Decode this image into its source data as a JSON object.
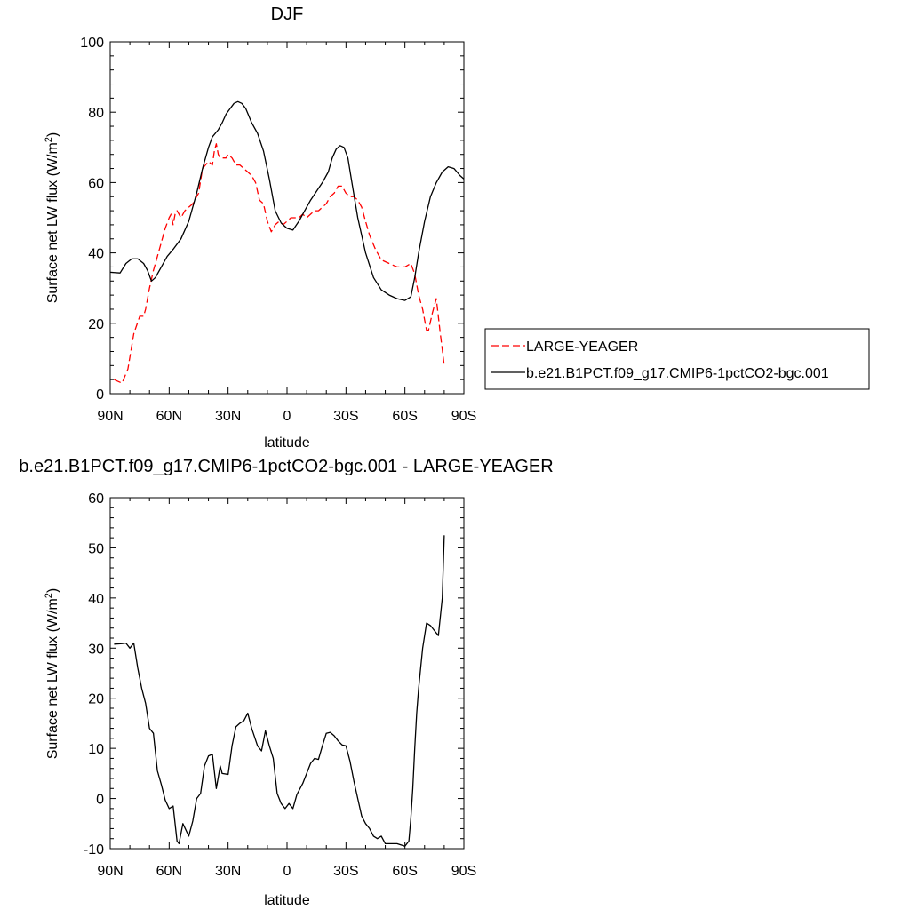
{
  "chart_data": [
    {
      "type": "line",
      "title": "DJF",
      "xlabel": "latitude",
      "ylabel": "Surface net LW flux (W/m",
      "ylabel_sup": "2",
      "ylabel_end": ")",
      "xlim": [
        90,
        -90
      ],
      "ylim": [
        0,
        100
      ],
      "yticks": [
        0,
        20,
        40,
        60,
        80,
        100
      ],
      "xticks": [
        90,
        60,
        30,
        0,
        -30,
        -60,
        -90
      ],
      "xtick_labels": [
        "90N",
        "60N",
        "30N",
        "0",
        "30S",
        "60S",
        "90S"
      ],
      "legend_position": "right",
      "grid": false,
      "series": [
        {
          "name": "LARGE-YEAGER",
          "color": "#ff0000",
          "dashed": true,
          "x": [
            88,
            84,
            81,
            78,
            75,
            73,
            72,
            70,
            68,
            66,
            64,
            62,
            60,
            59,
            58,
            57,
            56,
            55,
            54,
            52,
            50,
            48,
            45,
            43,
            40,
            38,
            37,
            36,
            35,
            34,
            33,
            32,
            31,
            30,
            28,
            26,
            24,
            22,
            20,
            18,
            16,
            14,
            12,
            10,
            8,
            6,
            4,
            2,
            0,
            -2,
            -4,
            -6,
            -8,
            -10,
            -12,
            -14,
            -16,
            -18,
            -20,
            -22,
            -24,
            -26,
            -28,
            -30,
            -32,
            -34,
            -36,
            -38,
            -40,
            -42,
            -45,
            -48,
            -52,
            -56,
            -60,
            -63,
            -65,
            -67,
            -69,
            -71,
            -72,
            -74,
            -76,
            -78,
            -80
          ],
          "values": [
            4,
            3,
            7,
            17,
            22,
            22,
            24,
            30,
            35,
            39,
            43,
            47,
            50,
            51,
            48,
            51,
            52,
            51,
            50,
            52,
            53,
            54,
            57,
            64,
            66,
            65,
            69,
            71,
            68,
            67,
            67,
            67,
            67,
            68,
            67,
            65,
            65,
            64,
            63,
            62,
            60,
            55,
            54,
            49,
            46,
            48,
            49,
            48,
            49,
            50,
            50,
            50,
            51,
            50,
            51,
            52,
            52,
            53,
            54,
            56,
            57,
            59,
            59,
            57,
            56,
            56,
            55,
            53,
            49,
            45,
            41,
            38,
            37,
            36,
            36,
            37,
            34,
            28,
            24,
            18,
            18,
            23,
            27,
            17,
            8
          ]
        },
        {
          "name": "b.e21.B1PCT.f09_g17.CMIP6-1pctCO2-bgc.001",
          "color": "#000000",
          "dashed": false,
          "x": [
            90,
            85,
            82,
            79,
            76,
            73,
            71,
            69,
            67,
            64,
            61,
            58,
            54,
            50,
            46,
            43,
            40,
            38,
            35,
            33,
            31,
            29,
            27,
            25,
            23,
            21,
            18,
            15,
            12,
            9,
            6,
            3,
            0,
            -3,
            -6,
            -9,
            -12,
            -15,
            -18,
            -21,
            -23,
            -25,
            -27,
            -29,
            -31,
            -33,
            -36,
            -40,
            -44,
            -48,
            -52,
            -56,
            -60,
            -63,
            -65,
            -67,
            -70,
            -73,
            -76,
            -79,
            -82,
            -85,
            -88,
            -90
          ],
          "values": [
            34.5,
            34.3,
            37,
            38.3,
            38.3,
            37,
            35,
            32,
            33,
            36,
            39,
            41,
            44,
            49,
            57,
            64,
            70,
            73,
            75,
            77,
            79.5,
            81,
            82.5,
            83,
            82.5,
            81,
            77,
            74,
            69,
            61,
            52,
            48.5,
            47,
            46.5,
            49,
            52,
            55,
            57.5,
            60,
            63,
            67,
            69.5,
            70.5,
            70,
            67,
            60,
            50,
            40,
            33,
            29.5,
            28,
            27,
            26.5,
            27.5,
            33,
            40,
            49,
            56,
            60,
            63,
            64.5,
            64,
            62,
            61
          ]
        }
      ]
    },
    {
      "type": "line",
      "title": "b.e21.B1PCT.f09_g17.CMIP6-1pctCO2-bgc.001 - LARGE-YEAGER",
      "xlabel": "latitude",
      "ylabel": "Surface net LW flux (W/m",
      "ylabel_sup": "2",
      "ylabel_end": ")",
      "xlim": [
        90,
        -90
      ],
      "ylim": [
        -10,
        60
      ],
      "yticks": [
        -10,
        0,
        10,
        20,
        30,
        40,
        50,
        60
      ],
      "xticks": [
        90,
        60,
        30,
        0,
        -30,
        -60,
        -90
      ],
      "xtick_labels": [
        "90N",
        "60N",
        "30N",
        "0",
        "30S",
        "60S",
        "90S"
      ],
      "grid": false,
      "series": [
        {
          "color": "#000000",
          "dashed": false,
          "x": [
            88,
            84,
            82,
            80,
            78,
            76,
            74,
            72,
            70,
            68,
            66,
            64,
            62,
            60,
            58,
            56,
            55,
            53,
            50,
            48,
            46,
            44,
            42,
            40,
            38,
            36,
            34,
            33,
            30,
            28,
            26,
            24,
            22,
            20,
            18,
            15,
            13,
            11,
            9,
            7,
            5,
            3,
            1,
            -1,
            -3,
            -5,
            -8,
            -10,
            -12,
            -14,
            -16,
            -18,
            -20,
            -22,
            -24,
            -26,
            -28,
            -30,
            -32,
            -34,
            -36,
            -38,
            -40,
            -42,
            -44,
            -46,
            -48,
            -50,
            -52,
            -54,
            -56,
            -60,
            -62,
            -63,
            -64,
            -65,
            -66,
            -67,
            -69,
            -71,
            -73,
            -75,
            -77,
            -79,
            -80
          ],
          "values": [
            30.8,
            30.9,
            31,
            30,
            31,
            26,
            22,
            19,
            14,
            13,
            5.5,
            2.8,
            -0.3,
            -2,
            -1.5,
            -8.5,
            -9,
            -5,
            -7.5,
            -4.5,
            0,
            1,
            6.5,
            8.5,
            8.8,
            2,
            6.5,
            5,
            4.8,
            10.5,
            14.3,
            15,
            15.5,
            17,
            14,
            10.5,
            9.5,
            13.5,
            10.5,
            8,
            1,
            -1,
            -2,
            -1,
            -2,
            0.8,
            3,
            5,
            7,
            8,
            7.8,
            10.5,
            13,
            13.2,
            12.5,
            11.5,
            10.7,
            10.5,
            7.5,
            3.5,
            0,
            -3.5,
            -5,
            -6,
            -7.5,
            -8,
            -7.5,
            -9,
            -9,
            -9,
            -9,
            -9.5,
            -8.5,
            -4,
            2,
            10,
            17,
            22,
            30,
            35,
            34.5,
            33.5,
            32.5,
            40,
            52.5
          ]
        }
      ]
    }
  ]
}
